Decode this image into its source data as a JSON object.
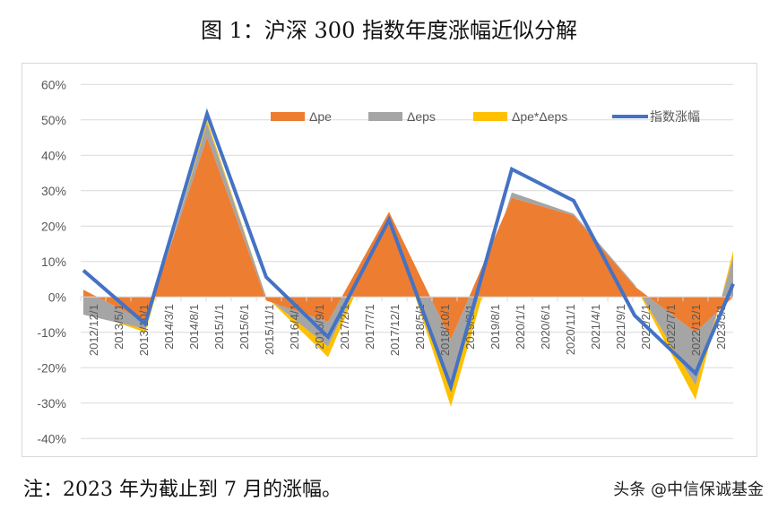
{
  "title": "图 1：沪深 300 指数年度涨幅近似分解",
  "note": "注：2023 年为截止到 7 月的涨幅。",
  "watermark": "头条 @中信保诚基金",
  "colors": {
    "pe": "#ED7D31",
    "eps": "#A5A5A5",
    "cross": "#FFC000",
    "index": "#4472C4",
    "grid": "#d9d9d9",
    "axis_text": "#595959"
  },
  "chart_data": {
    "type": "area",
    "title": "图 1：沪深 300 指数年度涨幅近似分解",
    "xlabel": "",
    "ylabel": "",
    "ylim": [
      -40,
      60
    ],
    "yticks": [
      "60%",
      "50%",
      "40%",
      "30%",
      "20%",
      "10%",
      "0%",
      "-10%",
      "-20%",
      "-30%",
      "-40%"
    ],
    "xtick_labels": [
      "2012/12/1",
      "2013/5/1",
      "2013/10/1",
      "2014/3/1",
      "2014/8/1",
      "2015/1/1",
      "2015/6/1",
      "2015/11/1",
      "2016/4/1",
      "2016/9/1",
      "2017/2/1",
      "2017/7/1",
      "2017/12/1",
      "2018/5/1",
      "2018/10/1",
      "2019/3/1",
      "2019/8/1",
      "2020/1/1",
      "2020/6/1",
      "2020/11/1",
      "2021/4/1",
      "2021/9/1",
      "2022/2/1",
      "2022/7/1",
      "2022/12/1",
      "2023/5/1"
    ],
    "grid": true,
    "legend_position": "top-inside",
    "x": [
      "2012/12",
      "2013/12",
      "2014/12",
      "2015/12",
      "2016/12",
      "2017/12",
      "2018/12",
      "2019/12",
      "2020/12",
      "2021/12",
      "2022/12",
      "2023/7"
    ],
    "series": [
      {
        "name": "Δpe",
        "type": "area",
        "values": [
          2,
          -7,
          45,
          -1,
          -7,
          24,
          -12,
          28,
          23,
          3,
          -10,
          0
        ]
      },
      {
        "name": "Δeps",
        "type": "area",
        "values": [
          -7,
          -2,
          4,
          1,
          -7,
          -1,
          -13,
          1.5,
          0.5,
          0.5,
          -15,
          11
        ]
      },
      {
        "name": "Δpe*Δeps",
        "type": "area",
        "values": [
          1,
          -1,
          1,
          0,
          -3,
          0,
          -6,
          0,
          0,
          0,
          -4,
          2
        ]
      },
      {
        "name": "指数涨幅",
        "type": "line",
        "values": [
          7.5,
          -7.6,
          51.7,
          5.6,
          -11.3,
          21.8,
          -25.3,
          36.1,
          27.2,
          -5.2,
          -21.6,
          3.7
        ]
      }
    ]
  },
  "legend": [
    {
      "label": "Δpe",
      "kind": "area",
      "color": "#ED7D31"
    },
    {
      "label": "Δeps",
      "kind": "area",
      "color": "#A5A5A5"
    },
    {
      "label": "Δpe*Δeps",
      "kind": "area",
      "color": "#FFC000"
    },
    {
      "label": "指数涨幅",
      "kind": "line",
      "color": "#4472C4"
    }
  ]
}
